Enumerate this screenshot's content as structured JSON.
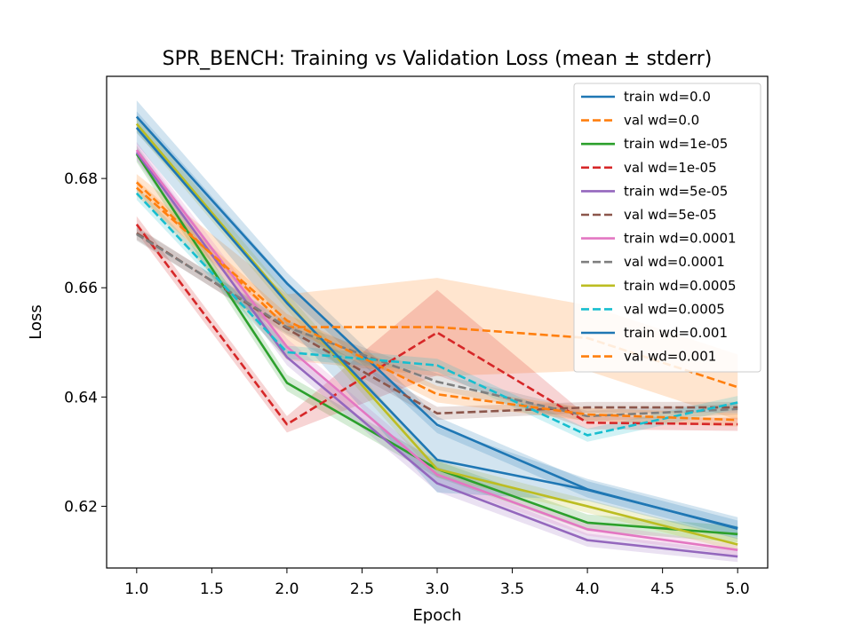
{
  "chart_data": {
    "type": "line",
    "title": "SPR_BENCH: Training vs Validation Loss (mean ± stderr)",
    "xlabel": "Epoch",
    "ylabel": "Loss",
    "xlim": [
      0.8,
      5.2
    ],
    "ylim": [
      0.6087,
      0.6987
    ],
    "x_ticks": [
      "1.0",
      "1.5",
      "2.0",
      "2.5",
      "3.0",
      "3.5",
      "4.0",
      "4.5",
      "5.0"
    ],
    "y_ticks": [
      "0.62",
      "0.64",
      "0.66",
      "0.68"
    ],
    "grid": false,
    "legend_position": "top-right",
    "x": [
      1,
      2,
      3,
      4,
      5
    ],
    "series": [
      {
        "name": "train wd=0.0",
        "style": "solid",
        "color": "#1f77b4",
        "values": [
          0.6913,
          0.6608,
          0.6349,
          0.6231,
          0.6159
        ],
        "stderr": [
          0.003,
          0.002,
          0.0015,
          0.0015,
          0.0015
        ]
      },
      {
        "name": "val wd=0.0",
        "style": "dashed",
        "color": "#ff7f0e",
        "values": [
          0.6793,
          0.6528,
          0.6528,
          0.6508,
          0.6418
        ],
        "stderr": [
          0.0015,
          0.006,
          0.009,
          0.006,
          0.006
        ]
      },
      {
        "name": "train wd=1e-05",
        "style": "solid",
        "color": "#2ca02c",
        "values": [
          0.6845,
          0.6426,
          0.6268,
          0.617,
          0.6149
        ],
        "stderr": [
          0.0015,
          0.0015,
          0.0015,
          0.0015,
          0.0015
        ]
      },
      {
        "name": "val wd=1e-05",
        "style": "dashed",
        "color": "#d62728",
        "values": [
          0.6716,
          0.635,
          0.6518,
          0.6353,
          0.635
        ],
        "stderr": [
          0.0015,
          0.0015,
          0.0078,
          0.0012,
          0.0012
        ]
      },
      {
        "name": "train wd=5e-05",
        "style": "solid",
        "color": "#9467bd",
        "values": [
          0.6848,
          0.6473,
          0.6242,
          0.6138,
          0.6108
        ],
        "stderr": [
          0.0015,
          0.0015,
          0.0015,
          0.0012,
          0.001
        ]
      },
      {
        "name": "val wd=5e-05",
        "style": "dashed",
        "color": "#8c564b",
        "values": [
          0.67,
          0.6525,
          0.637,
          0.6381,
          0.6381
        ],
        "stderr": [
          0.0012,
          0.0012,
          0.0012,
          0.001,
          0.001
        ]
      },
      {
        "name": "train wd=0.0001",
        "style": "solid",
        "color": "#e377c2",
        "values": [
          0.6852,
          0.6492,
          0.6258,
          0.6158,
          0.612
        ],
        "stderr": [
          0.0015,
          0.0015,
          0.0015,
          0.0012,
          0.001
        ]
      },
      {
        "name": "val wd=0.0001",
        "style": "dashed",
        "color": "#7f7f7f",
        "values": [
          0.6698,
          0.6528,
          0.6428,
          0.6365,
          0.6378
        ],
        "stderr": [
          0.0012,
          0.0012,
          0.0015,
          0.001,
          0.001
        ]
      },
      {
        "name": "train wd=0.0005",
        "style": "solid",
        "color": "#bcbd22",
        "values": [
          0.69,
          0.6575,
          0.6268,
          0.62,
          0.613
        ],
        "stderr": [
          0.0015,
          0.0015,
          0.0015,
          0.0012,
          0.0012
        ]
      },
      {
        "name": "val wd=0.0005",
        "style": "dashed",
        "color": "#17becf",
        "values": [
          0.6773,
          0.6482,
          0.6458,
          0.633,
          0.639
        ],
        "stderr": [
          0.0012,
          0.0012,
          0.0012,
          0.0012,
          0.0012
        ]
      },
      {
        "name": "train wd=0.001",
        "style": "solid",
        "color": "#1f77b4",
        "values": [
          0.6893,
          0.6572,
          0.6285,
          0.623,
          0.616
        ],
        "stderr": [
          0.003,
          0.004,
          0.006,
          0.002,
          0.002
        ]
      },
      {
        "name": "val wd=0.001",
        "style": "dashed",
        "color": "#ff7f0e",
        "values": [
          0.6783,
          0.654,
          0.6405,
          0.6368,
          0.6358
        ],
        "stderr": [
          0.0015,
          0.0012,
          0.0015,
          0.0012,
          0.0012
        ]
      }
    ]
  }
}
